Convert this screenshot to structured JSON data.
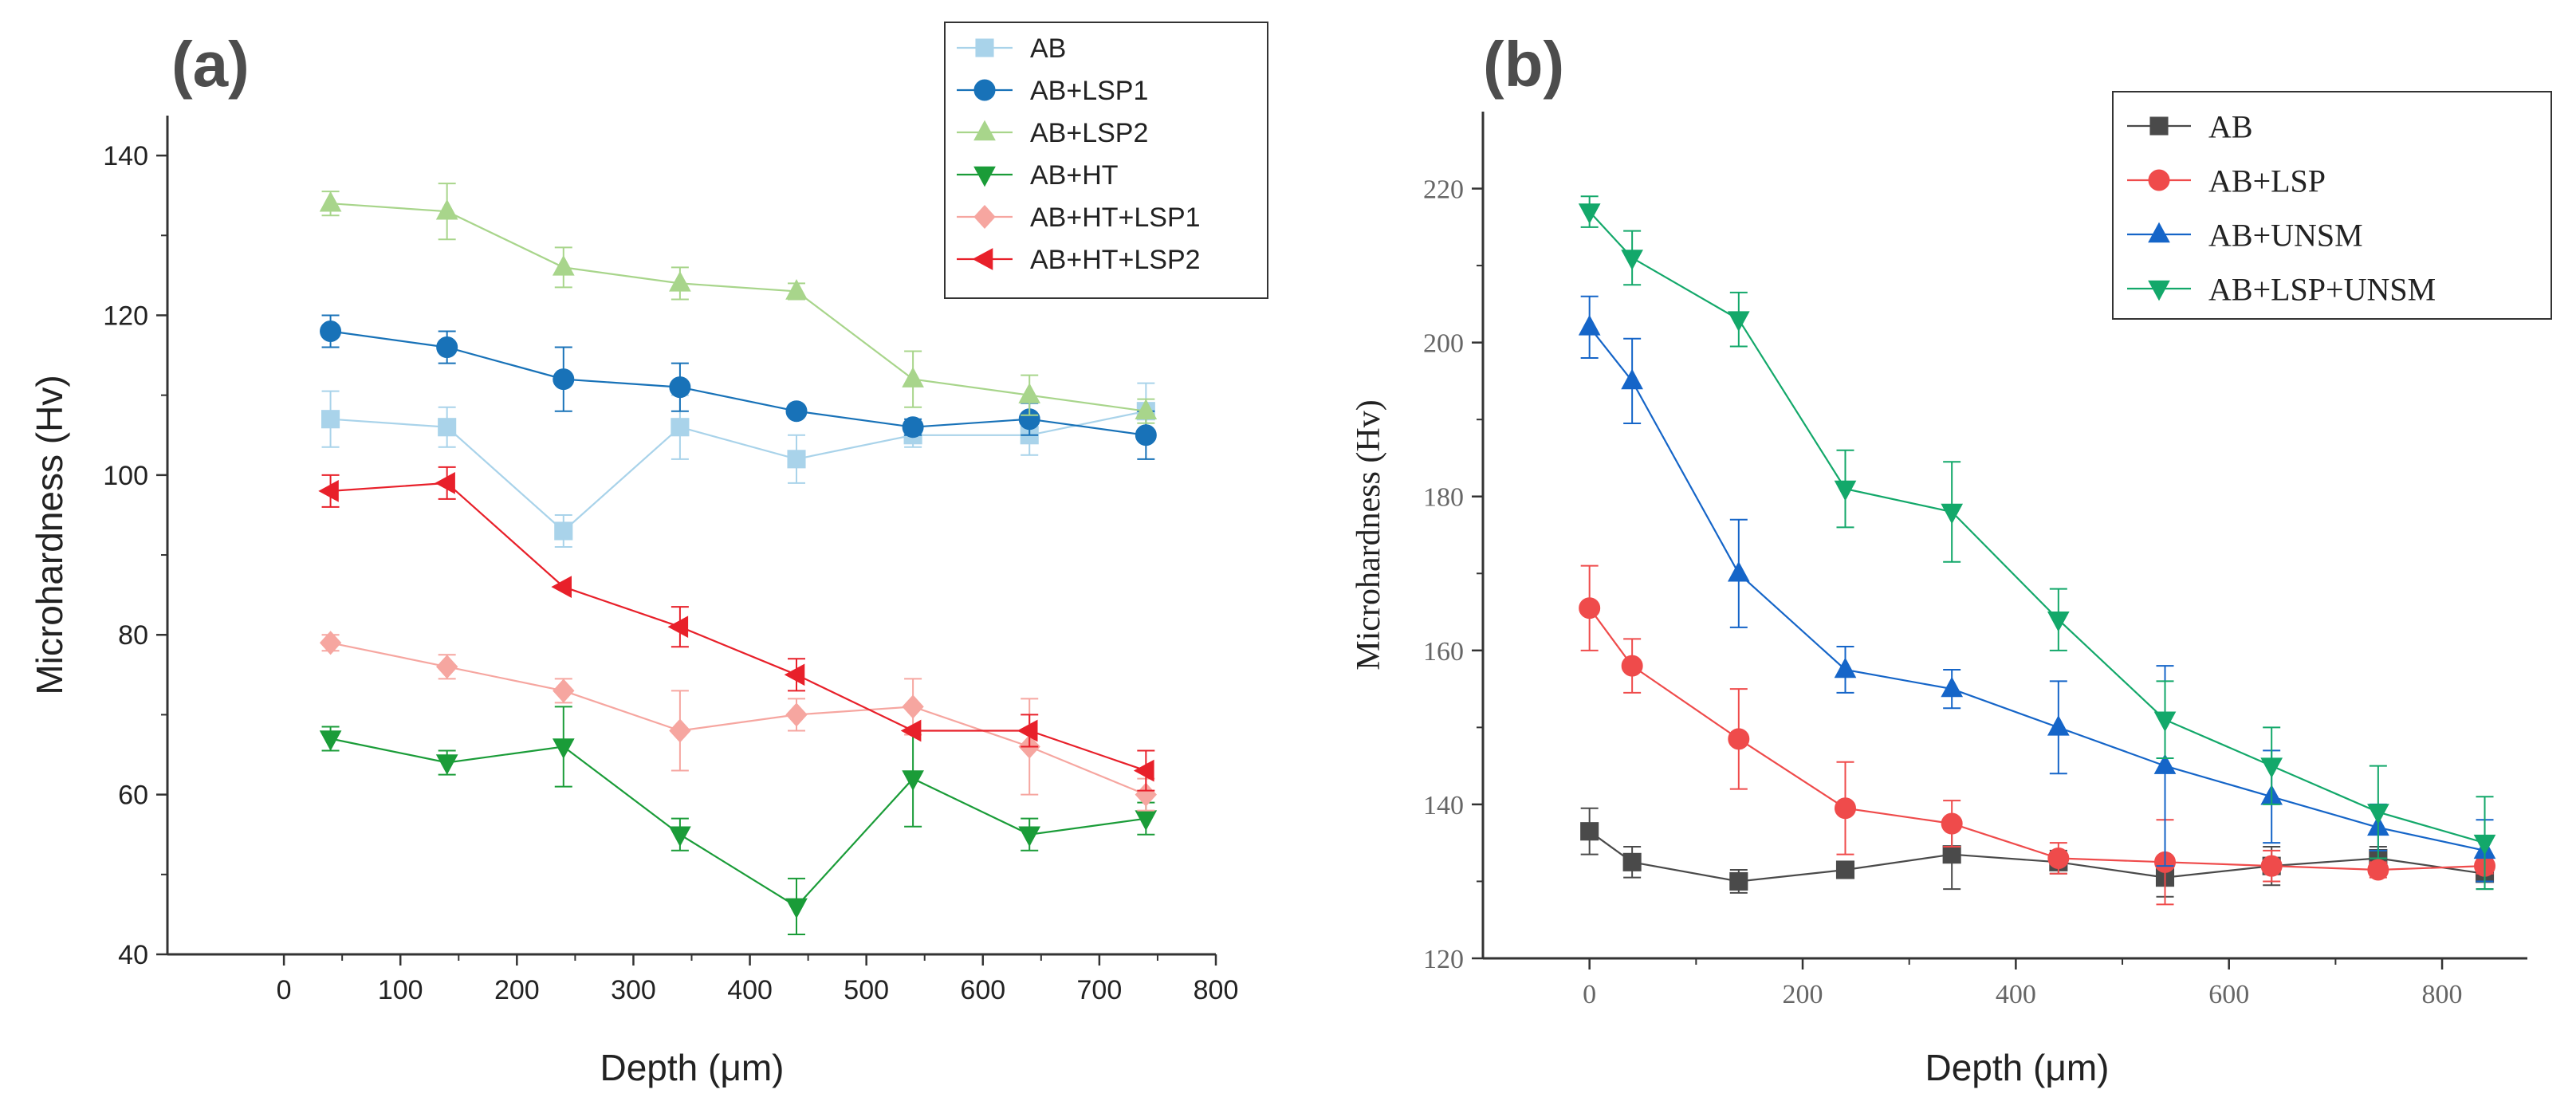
{
  "chart_data": [
    {
      "type": "line",
      "panel_label": "(a)",
      "xlabel": "Depth (μm)",
      "ylabel": "Microhardness (Hv)",
      "xlim": [
        -100,
        800
      ],
      "ylim": [
        40,
        145
      ],
      "xticks": [
        0,
        100,
        200,
        300,
        400,
        500,
        600,
        700,
        800
      ],
      "yticks": [
        40,
        60,
        80,
        100,
        120,
        140
      ],
      "legend_position": "top-right",
      "series": [
        {
          "name": "AB",
          "color": "#a9d3ea",
          "marker": "square",
          "x": [
            40,
            140,
            240,
            340,
            440,
            540,
            640,
            740
          ],
          "y": [
            107,
            106,
            93,
            106,
            102,
            105,
            105,
            108
          ],
          "err": [
            3.5,
            2.5,
            2,
            4,
            3,
            1.5,
            2.5,
            3.5
          ]
        },
        {
          "name": "AB+LSP1",
          "color": "#1872b8",
          "marker": "circle",
          "x": [
            40,
            140,
            240,
            340,
            440,
            540,
            640,
            740
          ],
          "y": [
            118,
            116,
            112,
            111,
            108,
            106,
            107,
            105
          ],
          "err": [
            2,
            2,
            4,
            3,
            0,
            1,
            2,
            3
          ]
        },
        {
          "name": "AB+LSP2",
          "color": "#a8d58b",
          "marker": "triangle-up",
          "x": [
            40,
            140,
            240,
            340,
            440,
            540,
            640,
            740
          ],
          "y": [
            134,
            133,
            126,
            124,
            123,
            112,
            110,
            108
          ],
          "err": [
            1.5,
            3.5,
            2.5,
            2,
            1,
            3.5,
            2.5,
            1.5
          ]
        },
        {
          "name": "AB+HT",
          "color": "#1a9c38",
          "marker": "triangle-down",
          "x": [
            40,
            140,
            240,
            340,
            440,
            540,
            640,
            740
          ],
          "y": [
            67,
            64,
            66,
            55,
            46,
            62,
            55,
            57
          ],
          "err": [
            1.5,
            1.5,
            5,
            2,
            3.5,
            6,
            2,
            2
          ]
        },
        {
          "name": "AB+HT+LSP1",
          "color": "#f6a6a0",
          "marker": "diamond",
          "x": [
            40,
            140,
            240,
            340,
            440,
            540,
            640,
            740
          ],
          "y": [
            79,
            76,
            73,
            68,
            70,
            71,
            66,
            60
          ],
          "err": [
            1,
            1.5,
            1.5,
            5,
            2,
            3.5,
            6,
            2
          ]
        },
        {
          "name": "AB+HT+LSP2",
          "color": "#e8202a",
          "marker": "triangle-left",
          "x": [
            40,
            140,
            240,
            340,
            440,
            540,
            640,
            740
          ],
          "y": [
            98,
            99,
            86,
            81,
            75,
            68,
            68,
            63
          ],
          "err": [
            2,
            2,
            0,
            2.5,
            2,
            0,
            2,
            2.5
          ]
        }
      ]
    },
    {
      "type": "line",
      "panel_label": "(b)",
      "xlabel": "Depth (μm)",
      "ylabel": "Microhardness (Hv)",
      "xlim": [
        -100,
        880
      ],
      "ylim": [
        120,
        230
      ],
      "xticks": [
        0,
        200,
        400,
        600,
        800
      ],
      "yticks": [
        120,
        140,
        160,
        180,
        200,
        220
      ],
      "legend_position": "top-right",
      "series": [
        {
          "name": "AB",
          "color": "#4a4a4a",
          "marker": "square",
          "x": [
            0,
            40,
            140,
            240,
            340,
            440,
            540,
            640,
            740,
            840
          ],
          "y": [
            136.5,
            132.5,
            130,
            131.5,
            133.5,
            132.5,
            130.5,
            132,
            133,
            131
          ],
          "err": [
            3,
            2,
            1.5,
            1,
            4.5,
            1.5,
            2.5,
            2.5,
            1.5,
            2
          ]
        },
        {
          "name": "AB+LSP",
          "color": "#ef4b4b",
          "marker": "circle",
          "x": [
            0,
            40,
            140,
            240,
            340,
            440,
            540,
            640,
            740,
            840
          ],
          "y": [
            165.5,
            158,
            148.5,
            139.5,
            137.5,
            133,
            132.5,
            132,
            131.5,
            132
          ],
          "err": [
            5.5,
            3.5,
            6.5,
            6,
            3,
            2,
            5.5,
            2,
            1,
            1
          ]
        },
        {
          "name": "AB+UNSM",
          "color": "#1565c8",
          "marker": "triangle-up",
          "x": [
            0,
            40,
            140,
            240,
            340,
            440,
            540,
            640,
            740,
            840
          ],
          "y": [
            202,
            195,
            170,
            157.5,
            155,
            150,
            145,
            141,
            137,
            134
          ],
          "err": [
            4,
            5.5,
            7,
            3,
            2.5,
            6,
            13,
            6,
            3,
            4
          ]
        },
        {
          "name": "AB+LSP+UNSM",
          "color": "#13a86a",
          "marker": "triangle-down",
          "x": [
            0,
            40,
            140,
            240,
            340,
            440,
            540,
            640,
            740,
            840
          ],
          "y": [
            217,
            211,
            203,
            181,
            178,
            164,
            151,
            145,
            139,
            135
          ],
          "err": [
            2,
            3.5,
            3.5,
            5,
            6.5,
            4,
            5,
            5,
            6,
            6
          ]
        }
      ]
    }
  ]
}
